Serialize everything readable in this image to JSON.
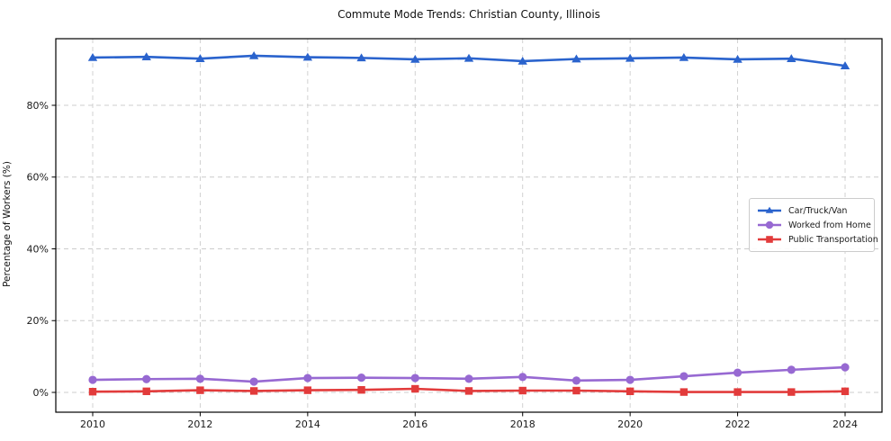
{
  "figure": {
    "background": "#ffffff"
  },
  "chart_data": {
    "type": "line",
    "title": "Commute Mode Trends: Christian County, Illinois",
    "xlabel": "",
    "ylabel": "Percentage of Workers (%)",
    "x": [
      2010,
      2011,
      2012,
      2013,
      2014,
      2015,
      2016,
      2017,
      2018,
      2019,
      2020,
      2021,
      2022,
      2023,
      2024
    ],
    "xticks": [
      2010,
      2012,
      2014,
      2016,
      2018,
      2020,
      2022,
      2024
    ],
    "xtick_labels": [
      "2010",
      "2012",
      "2014",
      "2016",
      "2018",
      "2020",
      "2022",
      "2024"
    ],
    "yticks": [
      0,
      20,
      40,
      60,
      80
    ],
    "ytick_labels": [
      "0%",
      "20%",
      "40%",
      "60%",
      "80%"
    ],
    "ylim": [
      -5.5,
      99.0
    ],
    "grid": true,
    "grid_style": "dashed",
    "legend_position": "center-right",
    "series": [
      {
        "name": "Car/Truck/Van",
        "color": "#2a63cd",
        "marker": "triangle",
        "values": [
          93.3,
          93.5,
          93.0,
          93.8,
          93.4,
          93.2,
          92.8,
          93.1,
          92.3,
          92.9,
          93.1,
          93.3,
          92.8,
          93.0,
          91.0
        ]
      },
      {
        "name": "Worked from Home",
        "color": "#9769d2",
        "marker": "circle",
        "values": [
          3.5,
          3.7,
          3.8,
          3.0,
          4.0,
          4.1,
          4.0,
          3.8,
          4.3,
          3.3,
          3.5,
          4.5,
          5.5,
          6.3,
          7.0
        ]
      },
      {
        "name": "Public Transportation",
        "color": "#e23b3b",
        "marker": "square",
        "values": [
          0.2,
          0.3,
          0.6,
          0.4,
          0.6,
          0.7,
          1.0,
          0.4,
          0.5,
          0.5,
          0.3,
          0.1,
          0.1,
          0.1,
          0.3
        ]
      }
    ],
    "colors": {
      "grid": "#cccccc",
      "axis": "#000000",
      "tick_text": "#1a1a1a",
      "background": "#ffffff"
    }
  }
}
